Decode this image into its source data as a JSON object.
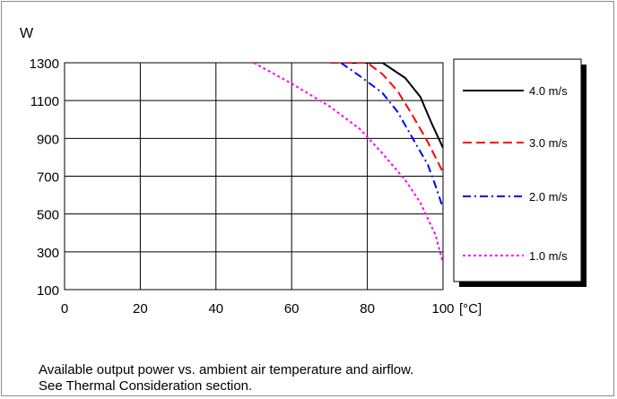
{
  "chart_data": {
    "type": "line",
    "title": "",
    "xlabel": "",
    "ylabel": "W",
    "x_unit_label": "[°C]",
    "xlim": [
      0,
      100
    ],
    "ylim": [
      100,
      1300
    ],
    "xticks": [
      0,
      20,
      40,
      60,
      80,
      100
    ],
    "yticks": [
      100,
      300,
      500,
      700,
      900,
      1100,
      1300
    ],
    "grid": true,
    "legend_position": "right",
    "series": [
      {
        "name": "4.0 m/s",
        "color": "#000000",
        "style": "solid",
        "points": [
          [
            75,
            1300
          ],
          [
            84,
            1300
          ],
          [
            90,
            1220
          ],
          [
            94,
            1120
          ],
          [
            97,
            980
          ],
          [
            100,
            850
          ]
        ]
      },
      {
        "name": "3.0 m/s",
        "color": "#ff0000",
        "style": "dashed",
        "points": [
          [
            70,
            1300
          ],
          [
            80,
            1300
          ],
          [
            84,
            1240
          ],
          [
            88,
            1150
          ],
          [
            92,
            1020
          ],
          [
            96,
            880
          ],
          [
            98,
            800
          ],
          [
            100,
            720
          ]
        ]
      },
      {
        "name": "2.0 m/s",
        "color": "#0000ff",
        "style": "dashdot",
        "points": [
          [
            73,
            1300
          ],
          [
            78,
            1230
          ],
          [
            84,
            1140
          ],
          [
            88,
            1040
          ],
          [
            92,
            900
          ],
          [
            96,
            760
          ],
          [
            98,
            650
          ],
          [
            100,
            530
          ]
        ]
      },
      {
        "name": "1.0 m/s",
        "color": "#ff00ff",
        "style": "dotted",
        "points": [
          [
            50,
            1300
          ],
          [
            60,
            1190
          ],
          [
            70,
            1070
          ],
          [
            78,
            950
          ],
          [
            84,
            820
          ],
          [
            90,
            680
          ],
          [
            94,
            560
          ],
          [
            98,
            390
          ],
          [
            100,
            240
          ]
        ]
      }
    ]
  },
  "caption": {
    "line1": "Available output power vs. ambient air temperature and airflow.",
    "line2": "See Thermal Consideration section."
  }
}
